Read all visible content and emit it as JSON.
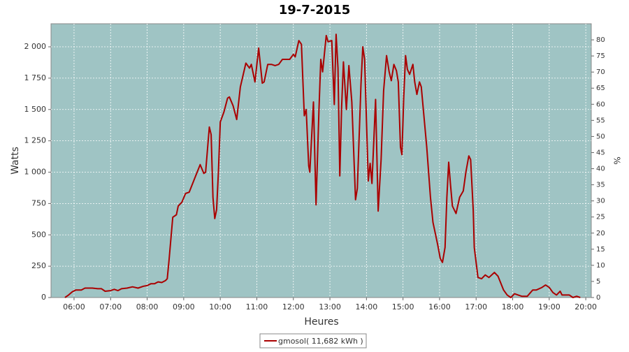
{
  "chart_data": {
    "type": "line",
    "title": "19-7-2015",
    "xlabel": "Heures",
    "ylabel": "Watts",
    "y2label": "%",
    "xlim": [
      5.37,
      20.15
    ],
    "xticks": [
      {
        "value": 6,
        "label": "06:00"
      },
      {
        "value": 7,
        "label": "07:00"
      },
      {
        "value": 8,
        "label": "08:00"
      },
      {
        "value": 9,
        "label": "09:00"
      },
      {
        "value": 10,
        "label": "10:00"
      },
      {
        "value": 11,
        "label": "11:00"
      },
      {
        "value": 12,
        "label": "12:00"
      },
      {
        "value": 13,
        "label": "13:00"
      },
      {
        "value": 14,
        "label": "14:00"
      },
      {
        "value": 15,
        "label": "15:00"
      },
      {
        "value": 16,
        "label": "16:00"
      },
      {
        "value": 17,
        "label": "17:00"
      },
      {
        "value": 18,
        "label": "18:00"
      },
      {
        "value": 19,
        "label": "19:00"
      },
      {
        "value": 20,
        "label": "20:00"
      }
    ],
    "ylim": [
      0,
      2184
    ],
    "yticks": [
      0,
      250,
      500,
      750,
      {
        "value": 1000,
        "label": "1 000"
      },
      {
        "value": 1250,
        "label": "1 250"
      },
      {
        "value": 1500,
        "label": "1 500"
      },
      {
        "value": 1750,
        "label": "1 750"
      },
      {
        "value": 2000,
        "label": "2 000"
      }
    ],
    "y2lim": [
      0,
      85
    ],
    "y2ticks": [
      0,
      5,
      10,
      15,
      20,
      25,
      30,
      35,
      40,
      45,
      50,
      55,
      60,
      65,
      70,
      75,
      80
    ],
    "grid": true,
    "legend": "bottom",
    "x": [
      5.75,
      5.85,
      5.95,
      6.05,
      6.2,
      6.3,
      6.5,
      6.65,
      6.75,
      6.85,
      7.0,
      7.1,
      7.2,
      7.3,
      7.45,
      7.6,
      7.75,
      7.9,
      8.0,
      8.1,
      8.2,
      8.3,
      8.4,
      8.5,
      8.55,
      8.6,
      8.7,
      8.8,
      8.85,
      8.95,
      9.05,
      9.15,
      9.3,
      9.45,
      9.55,
      9.6,
      9.7,
      9.75,
      9.8,
      9.85,
      9.9,
      9.95,
      10.0,
      10.1,
      10.2,
      10.25,
      10.35,
      10.45,
      10.55,
      10.7,
      10.8,
      10.85,
      10.95,
      11.05,
      11.15,
      11.2,
      11.3,
      11.4,
      11.5,
      11.6,
      11.7,
      11.9,
      12.0,
      12.05,
      12.15,
      12.22,
      12.3,
      12.35,
      12.42,
      12.45,
      12.55,
      12.62,
      12.7,
      12.75,
      12.8,
      12.9,
      12.95,
      13.05,
      13.12,
      13.17,
      13.22,
      13.27,
      13.32,
      13.37,
      13.45,
      13.52,
      13.6,
      13.7,
      13.75,
      13.85,
      13.9,
      13.95,
      14.0,
      14.05,
      14.1,
      14.15,
      14.25,
      14.32,
      14.4,
      14.47,
      14.55,
      14.62,
      14.68,
      14.75,
      14.82,
      14.87,
      14.93,
      14.97,
      15.02,
      15.07,
      15.12,
      15.18,
      15.27,
      15.32,
      15.38,
      15.45,
      15.5,
      15.65,
      15.75,
      15.82,
      15.95,
      16.02,
      16.08,
      16.15,
      16.2,
      16.25,
      16.3,
      16.35,
      16.45,
      16.55,
      16.65,
      16.72,
      16.8,
      16.85,
      16.92,
      16.95,
      17.05,
      17.15,
      17.25,
      17.35,
      17.5,
      17.6,
      17.75,
      17.85,
      17.95,
      18.05,
      18.15,
      18.25,
      18.4,
      18.55,
      18.65,
      18.8,
      18.9,
      19.0,
      19.1,
      19.2,
      19.3,
      19.35,
      19.55,
      19.65,
      19.75,
      19.85
    ],
    "series": [
      {
        "name": "gmosol( 11,682 kWh )",
        "color": "#aa0000",
        "values": [
          0,
          20,
          45,
          60,
          60,
          75,
          75,
          70,
          70,
          50,
          55,
          65,
          55,
          70,
          75,
          85,
          75,
          90,
          95,
          110,
          110,
          125,
          120,
          135,
          150,
          300,
          640,
          660,
          730,
          760,
          830,
          840,
          950,
          1060,
          990,
          1000,
          1360,
          1300,
          800,
          630,
          700,
          1000,
          1400,
          1480,
          1590,
          1600,
          1530,
          1420,
          1680,
          1870,
          1830,
          1860,
          1720,
          1990,
          1710,
          1720,
          1860,
          1860,
          1850,
          1860,
          1900,
          1900,
          1940,
          1920,
          2050,
          2020,
          1450,
          1500,
          1050,
          1000,
          1560,
          740,
          1500,
          1900,
          1800,
          2090,
          2040,
          2050,
          1540,
          2100,
          1830,
          970,
          1520,
          1880,
          1500,
          1850,
          1560,
          780,
          870,
          1700,
          2000,
          1900,
          1400,
          930,
          1070,
          910,
          1580,
          690,
          1100,
          1650,
          1930,
          1800,
          1730,
          1860,
          1810,
          1720,
          1200,
          1140,
          1600,
          1930,
          1820,
          1780,
          1860,
          1720,
          1620,
          1720,
          1680,
          1200,
          800,
          600,
          420,
          310,
          280,
          400,
          800,
          1080,
          900,
          730,
          670,
          800,
          850,
          1000,
          1130,
          1100,
          700,
          400,
          160,
          150,
          180,
          160,
          200,
          170,
          60,
          20,
          0,
          30,
          20,
          10,
          10,
          60,
          60,
          80,
          100,
          80,
          40,
          20,
          50,
          20,
          20,
          0,
          10,
          0
        ]
      }
    ]
  }
}
